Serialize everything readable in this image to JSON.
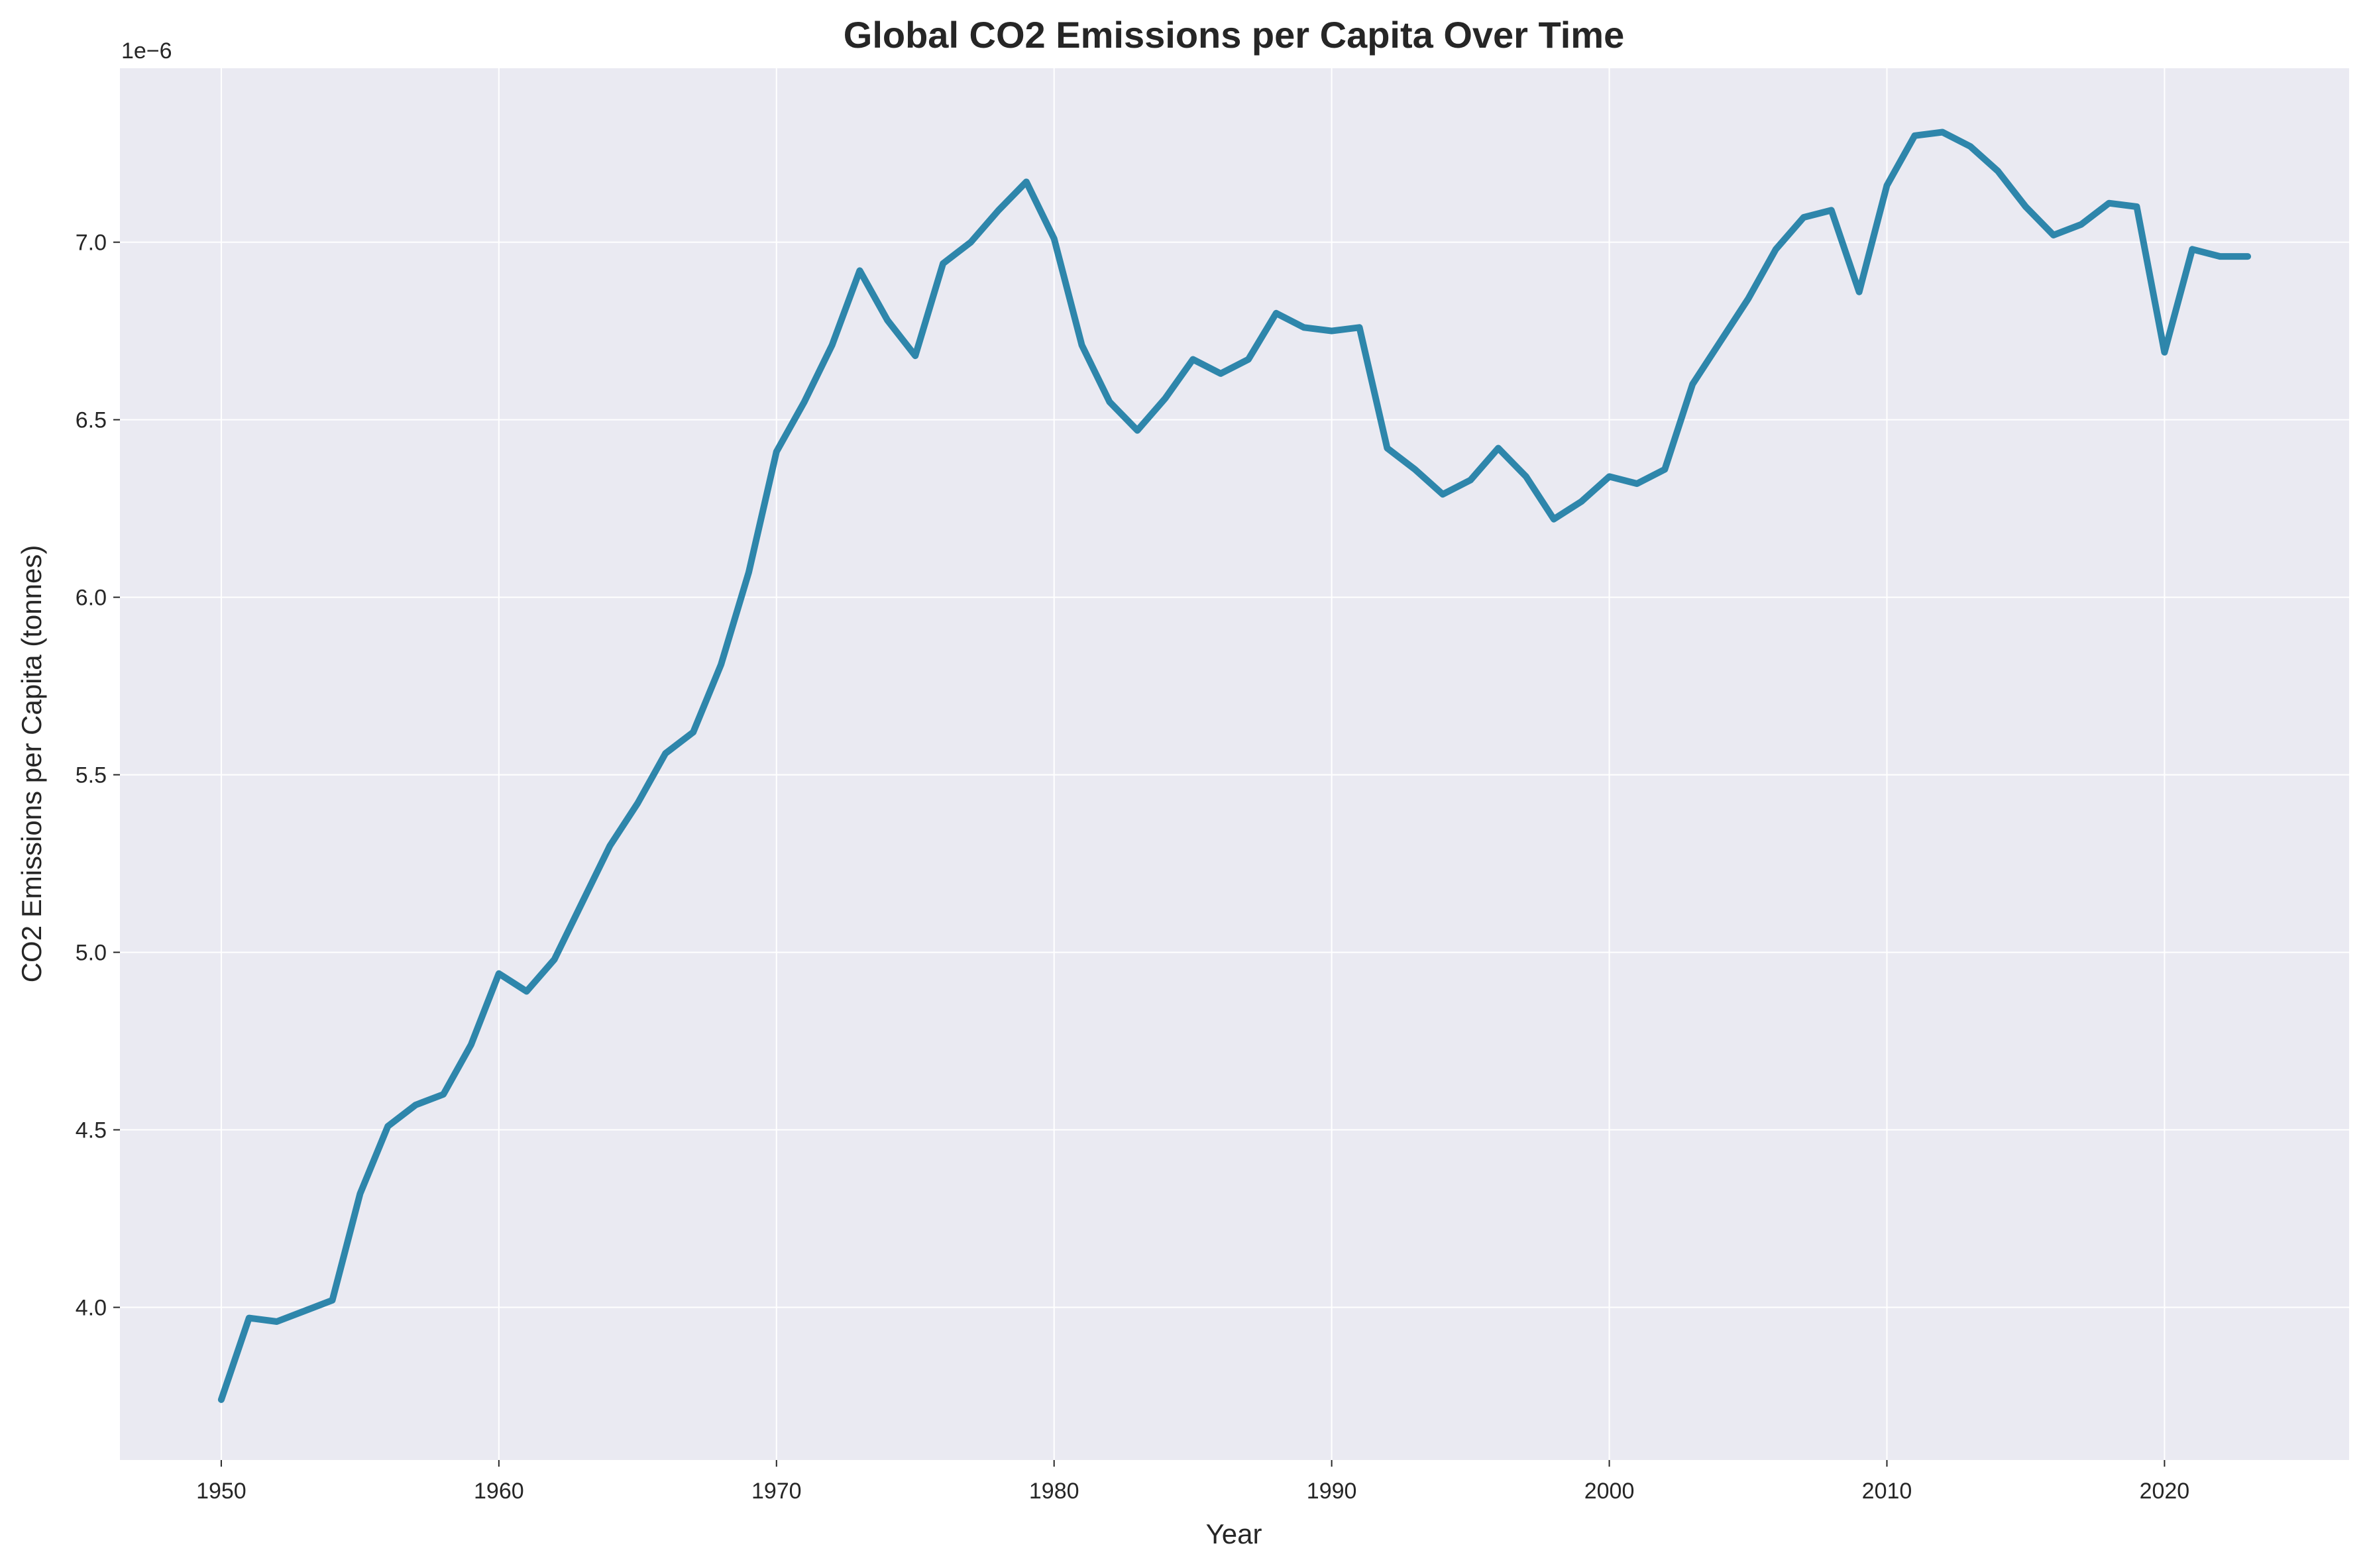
{
  "chart_data": {
    "type": "line",
    "title": "Global CO2 Emissions per Capita Over Time",
    "xlabel": "Year",
    "ylabel": "CO2 Emissions per Capita (tonnes)",
    "y_offset_label": "1e−6",
    "xlim": [
      1946.35,
      2026.65
    ],
    "ylim": [
      3.57,
      7.49
    ],
    "x_ticks": [
      1950,
      1960,
      1970,
      1980,
      1990,
      2000,
      2010,
      2020
    ],
    "x_tick_labels": [
      "1950",
      "1960",
      "1970",
      "1980",
      "1990",
      "2000",
      "2010",
      "2020"
    ],
    "y_ticks": [
      4.0,
      4.5,
      5.0,
      5.5,
      6.0,
      6.5,
      7.0
    ],
    "y_tick_labels": [
      "4.0",
      "4.5",
      "5.0",
      "5.5",
      "6.0",
      "6.5",
      "7.0"
    ],
    "grid": true,
    "line_color": "#2e86ab",
    "plot_background": "#eaeaf2",
    "series": [
      {
        "x": [
          1950,
          1951,
          1952,
          1953,
          1954,
          1955,
          1956,
          1957,
          1958,
          1959,
          1960,
          1961,
          1962,
          1963,
          1964,
          1965,
          1966,
          1967,
          1968,
          1969,
          1970,
          1971,
          1972,
          1973,
          1974,
          1975,
          1976,
          1977,
          1978,
          1979,
          1980,
          1981,
          1982,
          1983,
          1984,
          1985,
          1986,
          1987,
          1988,
          1989,
          1990,
          1991,
          1992,
          1993,
          1994,
          1995,
          1996,
          1997,
          1998,
          1999,
          2000,
          2001,
          2002,
          2003,
          2004,
          2005,
          2006,
          2007,
          2008,
          2009,
          2010,
          2011,
          2012,
          2013,
          2014,
          2015,
          2016,
          2017,
          2018,
          2019,
          2020,
          2021,
          2022,
          2023
        ],
        "values": [
          3.74,
          3.97,
          3.96,
          3.99,
          4.02,
          4.32,
          4.51,
          4.57,
          4.6,
          4.74,
          4.94,
          4.89,
          4.98,
          5.14,
          5.3,
          5.42,
          5.56,
          5.62,
          5.81,
          6.07,
          6.41,
          6.55,
          6.71,
          6.92,
          6.78,
          6.68,
          6.94,
          7.0,
          7.09,
          7.17,
          7.01,
          6.71,
          6.55,
          6.47,
          6.56,
          6.67,
          6.63,
          6.67,
          6.8,
          6.76,
          6.75,
          6.76,
          6.42,
          6.36,
          6.29,
          6.33,
          6.42,
          6.34,
          6.22,
          6.27,
          6.34,
          6.32,
          6.36,
          6.6,
          6.72,
          6.84,
          6.98,
          7.07,
          7.09,
          6.86,
          7.16,
          7.3,
          7.31,
          7.27,
          7.2,
          7.1,
          7.02,
          7.05,
          7.11,
          7.1,
          6.69,
          6.98,
          6.96,
          6.96
        ]
      }
    ]
  }
}
